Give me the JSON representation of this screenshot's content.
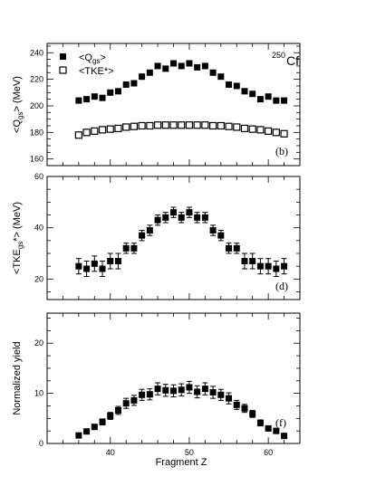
{
  "figure": {
    "nucleus": {
      "mass": "250",
      "symbol": "Cf"
    },
    "xlabel": "Fragment Z",
    "x_ticks": [
      "40",
      "50",
      "60"
    ]
  },
  "chart_data": [
    {
      "type": "scatter",
      "panel_tag": "(b)",
      "ylabel": {
        "main": "<Q",
        "sub": "gs",
        "tail": "> (MeV)"
      },
      "xlim": [
        32,
        64
      ],
      "ylim": [
        155,
        247
      ],
      "y_ticks": [
        "160",
        "180",
        "200",
        "220",
        "240"
      ],
      "legend": [
        {
          "marker": "filled-square",
          "main": "<Q",
          "sub": "gs",
          "tail": ">"
        },
        {
          "marker": "open-square",
          "main": "<TKE",
          "sub": "",
          "tail": "*>"
        }
      ],
      "series": [
        {
          "name": "<Qgs>",
          "marker": "filled-square",
          "x": [
            36,
            37,
            38,
            39,
            40,
            41,
            42,
            43,
            44,
            45,
            46,
            47,
            48,
            49,
            50,
            51,
            52,
            53,
            54,
            55,
            56,
            57,
            58,
            59,
            60,
            61,
            62
          ],
          "y": [
            204,
            205,
            207,
            206,
            210,
            211,
            216,
            217,
            222,
            225,
            230,
            228,
            232,
            230,
            232,
            229,
            230,
            225,
            222,
            216,
            215,
            211,
            209,
            205,
            207,
            204,
            204
          ]
        },
        {
          "name": "<TKE*>",
          "marker": "open-square",
          "x": [
            36,
            37,
            38,
            39,
            40,
            41,
            42,
            43,
            44,
            45,
            46,
            47,
            48,
            49,
            50,
            51,
            52,
            53,
            54,
            55,
            56,
            57,
            58,
            59,
            60,
            61,
            62
          ],
          "y": [
            178,
            180,
            181,
            182,
            182.5,
            183,
            184,
            184.5,
            185,
            185,
            185.5,
            185.5,
            185.5,
            185.5,
            185.5,
            185.5,
            185.5,
            185,
            185,
            184.5,
            184,
            183,
            182.5,
            182,
            181,
            180,
            179
          ]
        }
      ]
    },
    {
      "type": "scatter",
      "panel_tag": "(d)",
      "ylabel": {
        "main": "<TKE",
        "sub": "gs",
        "tail": "*> (MeV)"
      },
      "xlim": [
        32,
        64
      ],
      "ylim": [
        12,
        60
      ],
      "y_ticks": [
        "20",
        "40",
        "60"
      ],
      "series": [
        {
          "name": "<TKEgs*>",
          "marker": "filled-square",
          "x": [
            36,
            37,
            38,
            39,
            40,
            41,
            42,
            43,
            44,
            45,
            46,
            47,
            48,
            49,
            50,
            51,
            52,
            53,
            54,
            55,
            56,
            57,
            58,
            59,
            60,
            61,
            62
          ],
          "y": [
            25,
            24,
            26,
            24,
            27,
            27,
            32,
            32,
            37,
            39,
            43,
            44,
            46,
            44,
            46,
            44,
            44,
            39,
            37,
            32,
            32,
            27,
            27,
            25,
            25,
            24,
            25
          ],
          "err": [
            3,
            3,
            3,
            3,
            3,
            3,
            2,
            2,
            2,
            2,
            2,
            2,
            2,
            2,
            2,
            2,
            2,
            2,
            2,
            2,
            2,
            3,
            3,
            3,
            3,
            3,
            3
          ]
        }
      ]
    },
    {
      "type": "scatter",
      "panel_tag": "(f)",
      "ylabel": {
        "main": "Normalized yield",
        "sub": "",
        "tail": ""
      },
      "xlim": [
        32,
        64
      ],
      "ylim": [
        0,
        26
      ],
      "y_ticks": [
        "0",
        "10",
        "20"
      ],
      "series": [
        {
          "name": "Normalized yield",
          "marker": "filled-square",
          "x": [
            36,
            37,
            38,
            39,
            40,
            41,
            42,
            43,
            44,
            45,
            46,
            47,
            48,
            49,
            50,
            51,
            52,
            53,
            54,
            55,
            56,
            57,
            58,
            59,
            60,
            61,
            62
          ],
          "y": [
            1.6,
            2.4,
            3.3,
            4.3,
            5.5,
            6.6,
            8,
            8.6,
            9.7,
            9.8,
            10.9,
            10.6,
            10.5,
            10.7,
            11.2,
            10.3,
            10.9,
            10.2,
            9.7,
            9,
            7.7,
            7,
            5.9,
            4.1,
            3,
            2.5,
            1.5
          ],
          "err": [
            0.3,
            0.4,
            0.5,
            0.6,
            0.7,
            0.8,
            1,
            1,
            1.1,
            1.1,
            1.2,
            1.2,
            1.2,
            1.2,
            1.2,
            1.2,
            1.2,
            1.2,
            1.1,
            1.1,
            0.9,
            0.8,
            0.7,
            0.6,
            0.4,
            0.4,
            0.3
          ]
        }
      ]
    }
  ]
}
